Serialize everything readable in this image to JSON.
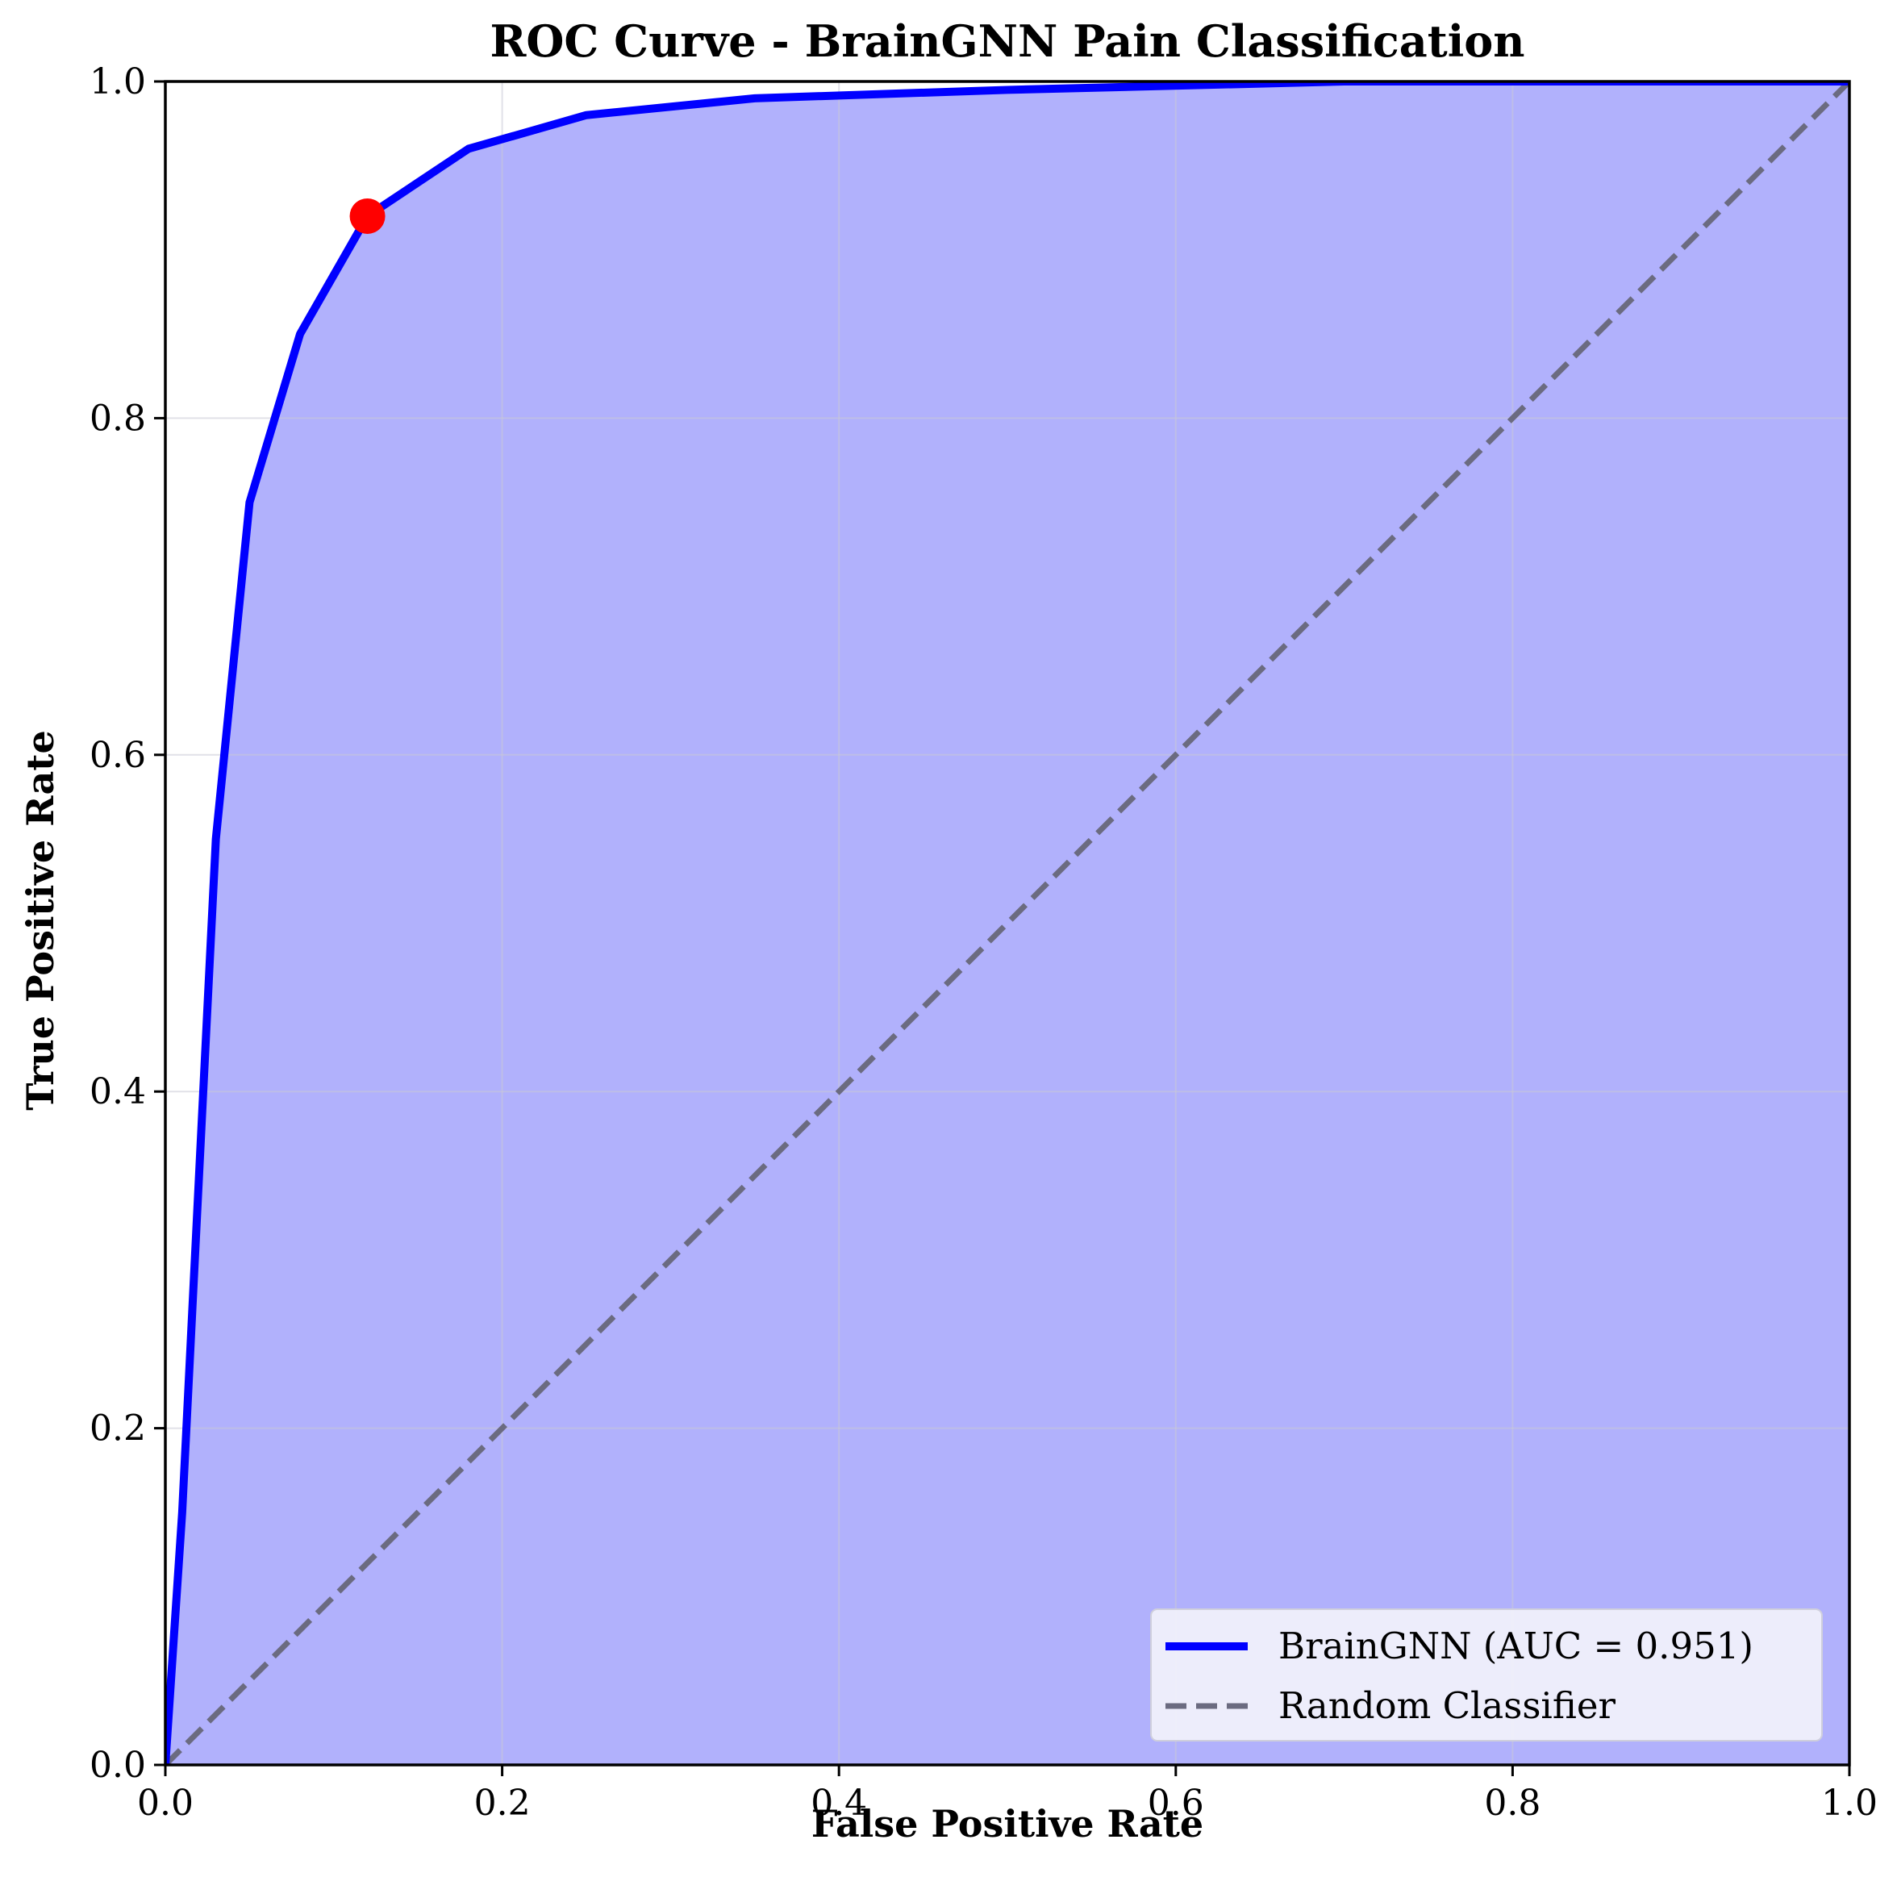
{
  "chart_data": {
    "type": "line",
    "title": "ROC Curve - BrainGNN Pain Classification",
    "xlabel": "False Positive Rate",
    "ylabel": "True Positive Rate",
    "xlim": [
      0.0,
      1.0
    ],
    "ylim": [
      0.0,
      1.0
    ],
    "x_ticks": [
      "0.0",
      "0.2",
      "0.4",
      "0.6",
      "0.8",
      "1.0"
    ],
    "y_ticks": [
      "0.0",
      "0.2",
      "0.4",
      "0.6",
      "0.8",
      "1.0"
    ],
    "grid": true,
    "legend_position": "lower-right",
    "series": [
      {
        "name": "BrainGNN (AUC = 0.951)",
        "color": "#0000ff",
        "line_style": "solid",
        "fill_under": true,
        "fill_color": "#b1b1fc",
        "x": [
          0.0,
          0.01,
          0.02,
          0.03,
          0.05,
          0.08,
          0.12,
          0.18,
          0.25,
          0.35,
          0.5,
          0.7,
          1.0
        ],
        "y": [
          0.0,
          0.15,
          0.35,
          0.55,
          0.75,
          0.85,
          0.92,
          0.96,
          0.98,
          0.99,
          0.995,
          1.0,
          1.0
        ]
      },
      {
        "name": "Random Classifier",
        "color": "#6b6b80",
        "line_style": "dashed",
        "x": [
          0.0,
          1.0
        ],
        "y": [
          0.0,
          1.0
        ]
      }
    ],
    "highlight_point": {
      "x": 0.12,
      "y": 0.92,
      "color": "#ff0000"
    }
  }
}
